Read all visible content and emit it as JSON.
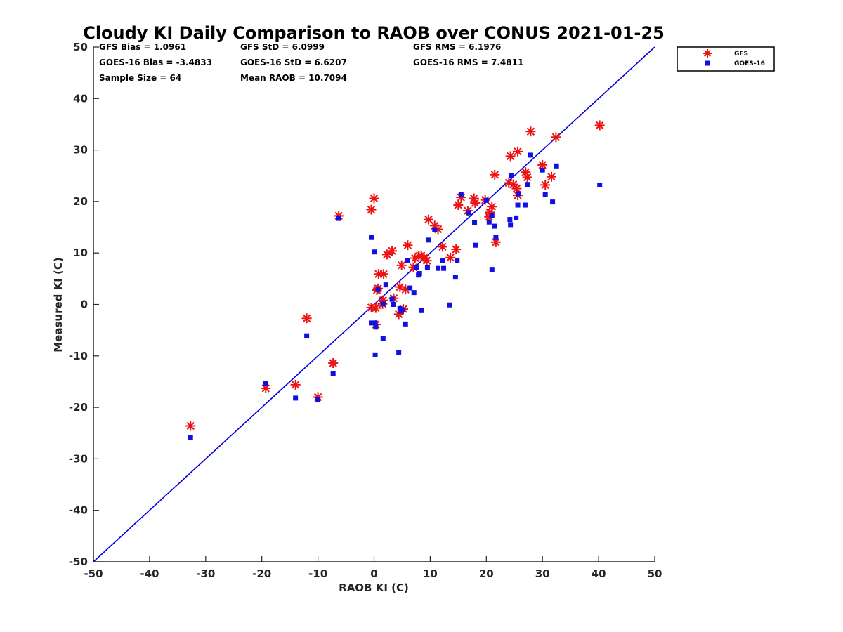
{
  "chart_data": {
    "type": "scatter",
    "title": "Cloudy KI Daily Comparison to RAOB over CONUS 2021-01-25",
    "xlabel": "RAOB KI (C)",
    "ylabel": "Measured KI (C)",
    "xlim": [
      -50,
      50
    ],
    "ylim": [
      -50,
      50
    ],
    "xticks": [
      "-50",
      "-40",
      "-30",
      "-20",
      "-10",
      "0",
      "10",
      "20",
      "30",
      "40",
      "50"
    ],
    "yticks": [
      "-50",
      "-40",
      "-30",
      "-20",
      "-10",
      "0",
      "10",
      "20",
      "30",
      "40",
      "50"
    ],
    "grid": false,
    "legend_position": "top-right, outside plot",
    "reference_line": {
      "type": "one-to-one",
      "from": [
        -50,
        -50
      ],
      "to": [
        50,
        50
      ],
      "color": "#0000dd"
    },
    "stats": {
      "gfs_bias": "GFS Bias = 1.0961",
      "gfs_std": "GFS StD = 6.0999",
      "gfs_rms": "GFS RMS = 6.1976",
      "goes_bias": "GOES-16 Bias = -3.4833",
      "goes_std": "GOES-16 StD = 6.6207",
      "goes_rms": "GOES-16 RMS = 7.4811",
      "sample_size": "Sample Size = 64",
      "mean_raob": "Mean RAOB = 10.7094"
    },
    "series": [
      {
        "name": "GFS",
        "marker": "asterisk",
        "color": "#ee1111",
        "points": [
          [
            -32.7,
            -23.6
          ],
          [
            -19.3,
            -16.3
          ],
          [
            -14,
            -15.6
          ],
          [
            -12,
            -2.7
          ],
          [
            -10,
            -18
          ],
          [
            -7.3,
            -11.4
          ],
          [
            -6.3,
            17.2
          ],
          [
            -0.5,
            18.4
          ],
          [
            0,
            20.6
          ],
          [
            -0.5,
            -0.6
          ],
          [
            0.3,
            -0.7
          ],
          [
            0.3,
            -3.9
          ],
          [
            0.7,
            3.1
          ],
          [
            0.8,
            5.9
          ],
          [
            1.7,
            5.9
          ],
          [
            1.6,
            0.8
          ],
          [
            2.3,
            9.7
          ],
          [
            3.2,
            10.4
          ],
          [
            3.5,
            1.2
          ],
          [
            4.4,
            -1.9
          ],
          [
            4.6,
            3.4
          ],
          [
            4.9,
            7.6
          ],
          [
            5.6,
            2.9
          ],
          [
            6,
            11.5
          ],
          [
            7,
            7.2
          ],
          [
            7.3,
            9
          ],
          [
            8,
            9.4
          ],
          [
            8.4,
            9.5
          ],
          [
            9.4,
            8.5
          ],
          [
            9.7,
            16.5
          ],
          [
            10.8,
            15.3
          ],
          [
            11.4,
            14.6
          ],
          [
            12.2,
            11.2
          ],
          [
            13.6,
            9.1
          ],
          [
            14.6,
            10.7
          ],
          [
            15,
            19.3
          ],
          [
            15.5,
            20.8
          ],
          [
            16.7,
            18.2
          ],
          [
            17.8,
            20.6
          ],
          [
            18,
            19.7
          ],
          [
            19.8,
            20.3
          ],
          [
            20.5,
            17
          ],
          [
            21,
            19
          ],
          [
            21.5,
            25.2
          ],
          [
            21.7,
            12.1
          ],
          [
            24,
            23.6
          ],
          [
            24.3,
            28.8
          ],
          [
            24.8,
            23.3
          ],
          [
            25.4,
            22.5
          ],
          [
            25.6,
            29.7
          ],
          [
            25.6,
            21.2
          ],
          [
            27,
            25.7
          ],
          [
            27.3,
            24.7
          ],
          [
            27.9,
            33.6
          ],
          [
            30,
            27.1
          ],
          [
            30.5,
            23.2
          ],
          [
            31.6,
            24.8
          ],
          [
            32.4,
            32.5
          ],
          [
            40.2,
            34.8
          ],
          [
            20.6,
            17.9
          ],
          [
            1.5,
            0.1
          ],
          [
            0.5,
            2.8
          ],
          [
            5.2,
            -0.9
          ],
          [
            8.9,
            9
          ]
        ]
      },
      {
        "name": "GOES-16",
        "marker": "square",
        "color": "#1010e0",
        "points": [
          [
            -32.7,
            -25.8
          ],
          [
            -19.3,
            -15.3
          ],
          [
            -14,
            -18.2
          ],
          [
            -12,
            -6.1
          ],
          [
            -10,
            -18.5
          ],
          [
            -7.3,
            -13.5
          ],
          [
            -6.3,
            16.7
          ],
          [
            -0.5,
            13
          ],
          [
            0,
            10.2
          ],
          [
            -0.5,
            -3.6
          ],
          [
            0.2,
            -3.6
          ],
          [
            0.3,
            -4.4
          ],
          [
            0.7,
            2.9
          ],
          [
            0.2,
            -9.8
          ],
          [
            1.6,
            -6.6
          ],
          [
            1.6,
            0.1
          ],
          [
            2.1,
            3.8
          ],
          [
            3.2,
            1
          ],
          [
            3.5,
            0
          ],
          [
            4.4,
            -9.4
          ],
          [
            4.6,
            -0.8
          ],
          [
            5,
            -1.1
          ],
          [
            5.6,
            -3.8
          ],
          [
            6,
            8.5
          ],
          [
            6.4,
            3.2
          ],
          [
            7.1,
            2.3
          ],
          [
            7.5,
            7.1
          ],
          [
            7.9,
            5.7
          ],
          [
            8.4,
            -1.2
          ],
          [
            9.5,
            7.2
          ],
          [
            9.7,
            12.5
          ],
          [
            10.8,
            14.5
          ],
          [
            11.4,
            7
          ],
          [
            12.2,
            8.5
          ],
          [
            12.4,
            7
          ],
          [
            13.5,
            -0.1
          ],
          [
            14.5,
            5.3
          ],
          [
            14.8,
            8.5
          ],
          [
            15.5,
            21.4
          ],
          [
            16.8,
            17.8
          ],
          [
            17.9,
            15.9
          ],
          [
            18.1,
            11.5
          ],
          [
            20,
            20.2
          ],
          [
            20.5,
            16
          ],
          [
            21,
            17.2
          ],
          [
            21,
            6.8
          ],
          [
            21.5,
            15.2
          ],
          [
            21.7,
            13
          ],
          [
            24.2,
            16.5
          ],
          [
            24.3,
            15.5
          ],
          [
            24.4,
            25
          ],
          [
            25.3,
            16.8
          ],
          [
            25.6,
            19.3
          ],
          [
            25.7,
            21.5
          ],
          [
            26.9,
            19.3
          ],
          [
            27.4,
            23.3
          ],
          [
            27.9,
            29
          ],
          [
            30,
            26.1
          ],
          [
            30.5,
            21.4
          ],
          [
            31.8,
            19.9
          ],
          [
            32.5,
            26.9
          ],
          [
            40.2,
            23.2
          ],
          [
            4.8,
            -1.3
          ],
          [
            8.1,
            6
          ]
        ]
      }
    ]
  }
}
